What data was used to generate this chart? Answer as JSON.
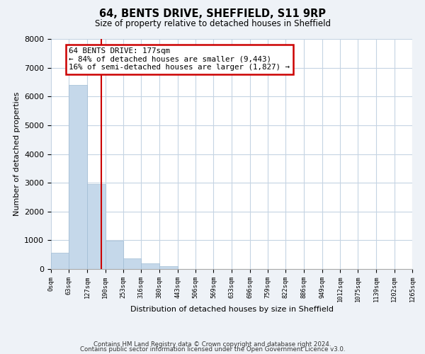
{
  "title": "64, BENTS DRIVE, SHEFFIELD, S11 9RP",
  "subtitle": "Size of property relative to detached houses in Sheffield",
  "xlabel": "Distribution of detached houses by size in Sheffield",
  "ylabel": "Number of detached properties",
  "bar_edges": [
    0,
    63,
    127,
    190,
    253,
    316,
    380,
    443,
    506,
    569,
    633,
    696,
    759,
    822,
    886,
    949,
    1012,
    1075,
    1139,
    1202,
    1265
  ],
  "bar_heights": [
    560,
    6400,
    2950,
    975,
    375,
    185,
    90,
    0,
    0,
    0,
    0,
    0,
    0,
    0,
    0,
    0,
    0,
    0,
    0,
    0
  ],
  "tick_labels": [
    "0sqm",
    "63sqm",
    "127sqm",
    "190sqm",
    "253sqm",
    "316sqm",
    "380sqm",
    "443sqm",
    "506sqm",
    "569sqm",
    "633sqm",
    "696sqm",
    "759sqm",
    "822sqm",
    "886sqm",
    "949sqm",
    "1012sqm",
    "1075sqm",
    "1139sqm",
    "1202sqm",
    "1265sqm"
  ],
  "bar_color": "#c5d8ea",
  "bar_edge_color": "#a0bcd4",
  "property_line_x": 177,
  "property_line_color": "#cc0000",
  "annotation_line1": "64 BENTS DRIVE: 177sqm",
  "annotation_line2": "← 84% of detached houses are smaller (9,443)",
  "annotation_line3": "16% of semi-detached houses are larger (1,827) →",
  "ylim": [
    0,
    8000
  ],
  "xlim": [
    0,
    1265
  ],
  "background_color": "#eef2f7",
  "plot_bg_color": "#ffffff",
  "grid_color": "#c5d4e3",
  "footer_line1": "Contains HM Land Registry data © Crown copyright and database right 2024.",
  "footer_line2": "Contains public sector information licensed under the Open Government Licence v3.0.",
  "yticks": [
    0,
    1000,
    2000,
    3000,
    4000,
    5000,
    6000,
    7000,
    8000
  ]
}
